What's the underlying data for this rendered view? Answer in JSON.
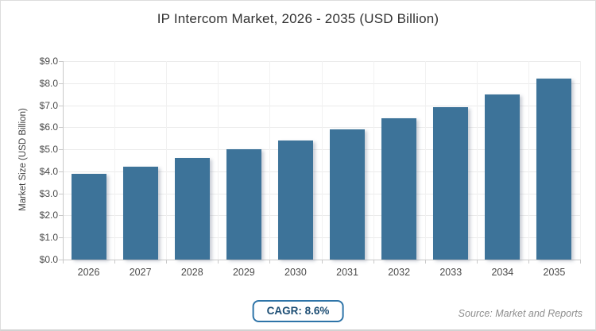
{
  "chart_data": {
    "type": "bar",
    "title": "IP Intercom Market, 2026 - 2035 (USD Billion)",
    "categories": [
      "2026",
      "2027",
      "2028",
      "2029",
      "2030",
      "2031",
      "2032",
      "2033",
      "2034",
      "2035"
    ],
    "values": [
      3.9,
      4.2,
      4.6,
      5.0,
      5.4,
      5.9,
      6.4,
      6.9,
      7.5,
      8.2
    ],
    "xlabel": "",
    "ylabel": "Market Size (USD Billion)",
    "ylim": [
      0,
      9
    ],
    "ytick_step": 1.0,
    "ytick_prefix": "$",
    "ytick_decimals": 1,
    "grid": true,
    "legend": "none",
    "bar_color": "#3d7399"
  },
  "footer": {
    "cagr_label": "CAGR: 8.6%",
    "source": "Source: Market and Reports"
  },
  "colors": {
    "bar": "#3d7399",
    "badge_border": "#2e74a8",
    "badge_text": "#1d4e74",
    "gridline": "#ebebeb",
    "axis": "#c9c9c9",
    "tick_text": "#4a4a4a",
    "title_text": "#333333",
    "source_text": "#8e8e8e"
  }
}
